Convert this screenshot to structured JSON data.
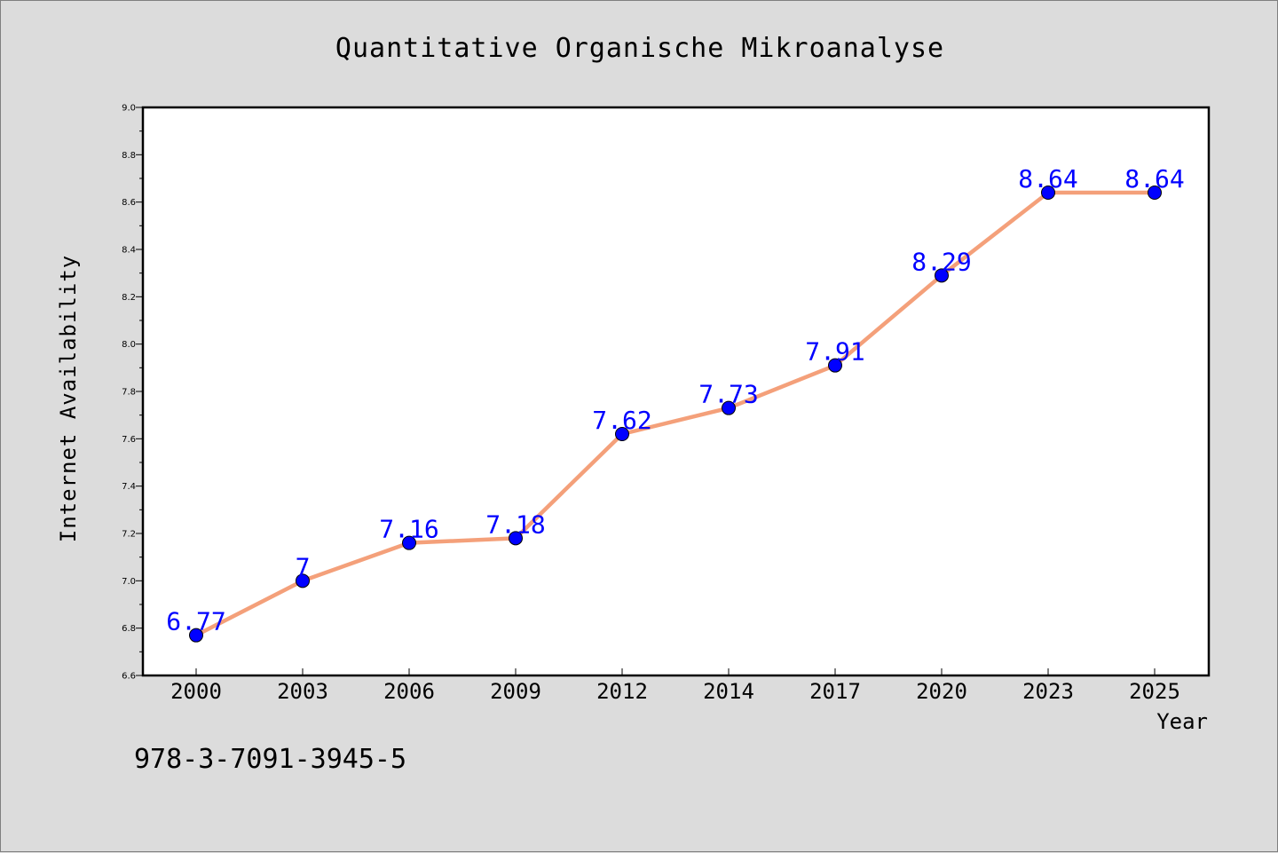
{
  "chart_data": {
    "type": "line",
    "title": "Quantitative Organische Mikroanalyse",
    "xlabel": "Year",
    "ylabel": "Internet Availability",
    "categories": [
      "2000",
      "2003",
      "2006",
      "2009",
      "2012",
      "2014",
      "2017",
      "2020",
      "2023",
      "2025"
    ],
    "values": [
      6.77,
      7.0,
      7.16,
      7.18,
      7.62,
      7.73,
      7.91,
      8.29,
      8.64,
      8.64
    ],
    "data_labels": [
      "6.77",
      "7",
      "7.16",
      "7.18",
      "7.62",
      "7.73",
      "7.91",
      "8.29",
      "8.64",
      "8.64"
    ],
    "ylim": [
      6.6,
      9.0
    ],
    "yticks": [
      "6.6",
      "6.8",
      "7.0",
      "7.2",
      "7.4",
      "7.6",
      "7.8",
      "8.0",
      "8.2",
      "8.4",
      "8.6",
      "8.8",
      "9.0"
    ],
    "grid": false,
    "line_color": "#f4a07a",
    "marker_color": "#0000ff",
    "label_color": "#0000ff"
  },
  "footnote": "978-3-7091-3945-5"
}
